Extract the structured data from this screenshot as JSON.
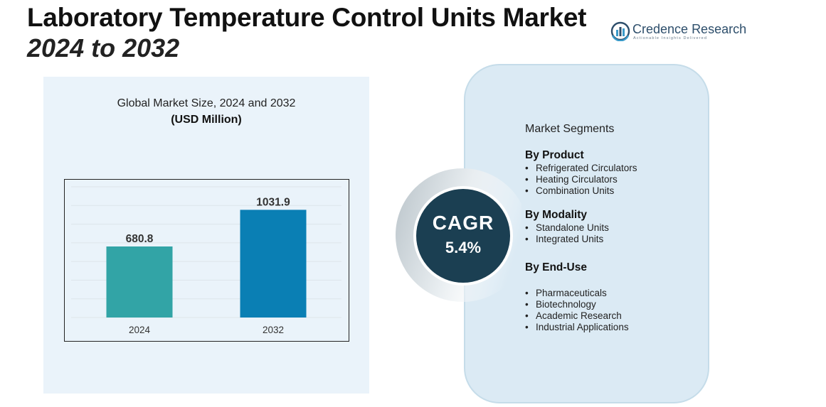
{
  "header": {
    "title_line1": "Laboratory Temperature Control Units Market",
    "title_line2": "2024 to 2032"
  },
  "logo": {
    "name_part1": "Credence",
    "name_part2": "Research",
    "tagline": "Actionable Insights Delivered",
    "icon": "bar-chart-circle-logo"
  },
  "chart_data": {
    "type": "bar",
    "title": "Global Market Size, 2024 and 2032",
    "subtitle": "(USD Million)",
    "categories": [
      "2024",
      "2032"
    ],
    "values": [
      680.8,
      1031.9
    ],
    "data_labels": [
      "680.8",
      "1031.9"
    ],
    "colors": [
      "#32a4a6",
      "#0a7fb4"
    ],
    "ylim": [
      0,
      1300
    ],
    "grid": true,
    "legend": "none",
    "xlabel": "",
    "ylabel": ""
  },
  "cagr": {
    "label": "CAGR",
    "value": "5.4%",
    "circle_color": "#1b3f52"
  },
  "segments": {
    "heading": "Market Segments",
    "groups": [
      {
        "title": "By Product",
        "items": [
          "Refrigerated Circulators",
          "Heating Circulators",
          "Combination Units"
        ]
      },
      {
        "title": "By Modality",
        "items": [
          "Standalone Units",
          "Integrated Units"
        ]
      },
      {
        "title": "By End-Use",
        "items": [
          "Pharmaceuticals",
          "Biotechnology",
          "Academic Research",
          "Industrial Applications"
        ]
      }
    ]
  }
}
